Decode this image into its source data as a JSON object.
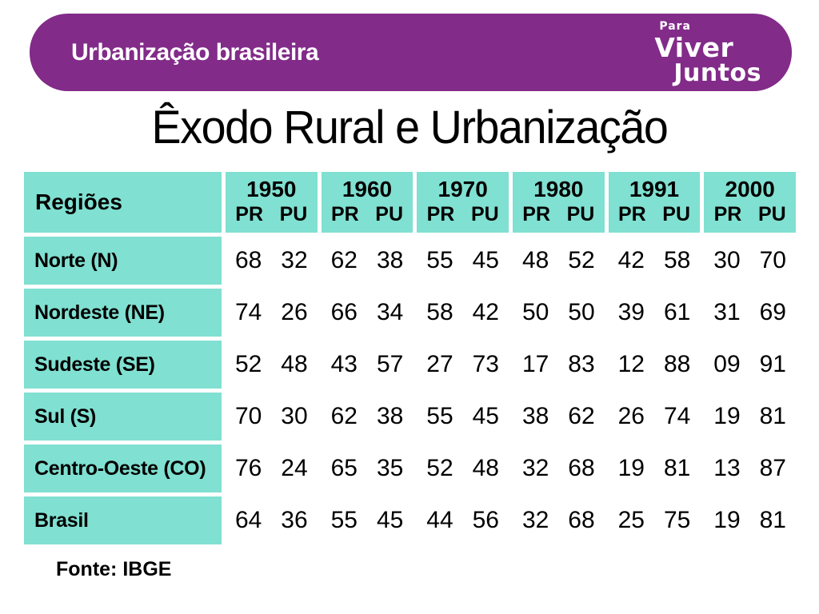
{
  "banner": {
    "title": "Urbanização brasileira",
    "logo": {
      "line1": "Para",
      "line2": "Viver",
      "line3": "Juntos"
    },
    "bg_color": "#822b89",
    "text_color": "#ffffff"
  },
  "slide": {
    "title": "Êxodo Rural e Urbanização",
    "source": "Fonte: IBGE"
  },
  "table": {
    "corner_label": "Regiões",
    "years": [
      "1950",
      "1960",
      "1970",
      "1980",
      "1991",
      "2000"
    ],
    "sub_headers": [
      "PR",
      "PU"
    ],
    "header_bg": "#80e0d1",
    "rows": [
      {
        "region": "Norte (N)",
        "values": [
          "68",
          "32",
          "62",
          "38",
          "55",
          "45",
          "48",
          "52",
          "42",
          "58",
          "30",
          "70"
        ]
      },
      {
        "region": "Nordeste (NE)",
        "values": [
          "74",
          "26",
          "66",
          "34",
          "58",
          "42",
          "50",
          "50",
          "39",
          "61",
          "31",
          "69"
        ]
      },
      {
        "region": "Sudeste (SE)",
        "values": [
          "52",
          "48",
          "43",
          "57",
          "27",
          "73",
          "17",
          "83",
          "12",
          "88",
          "09",
          "91"
        ]
      },
      {
        "region": "Sul (S)",
        "values": [
          "70",
          "30",
          "62",
          "38",
          "55",
          "45",
          "38",
          "62",
          "26",
          "74",
          "19",
          "81"
        ]
      },
      {
        "region": "Centro-Oeste (CO)",
        "values": [
          "76",
          "24",
          "65",
          "35",
          "52",
          "48",
          "32",
          "68",
          "19",
          "81",
          "13",
          "87"
        ]
      },
      {
        "region": "Brasil",
        "values": [
          "64",
          "36",
          "55",
          "45",
          "44",
          "56",
          "32",
          "68",
          "25",
          "75",
          "19",
          "81"
        ]
      }
    ]
  }
}
